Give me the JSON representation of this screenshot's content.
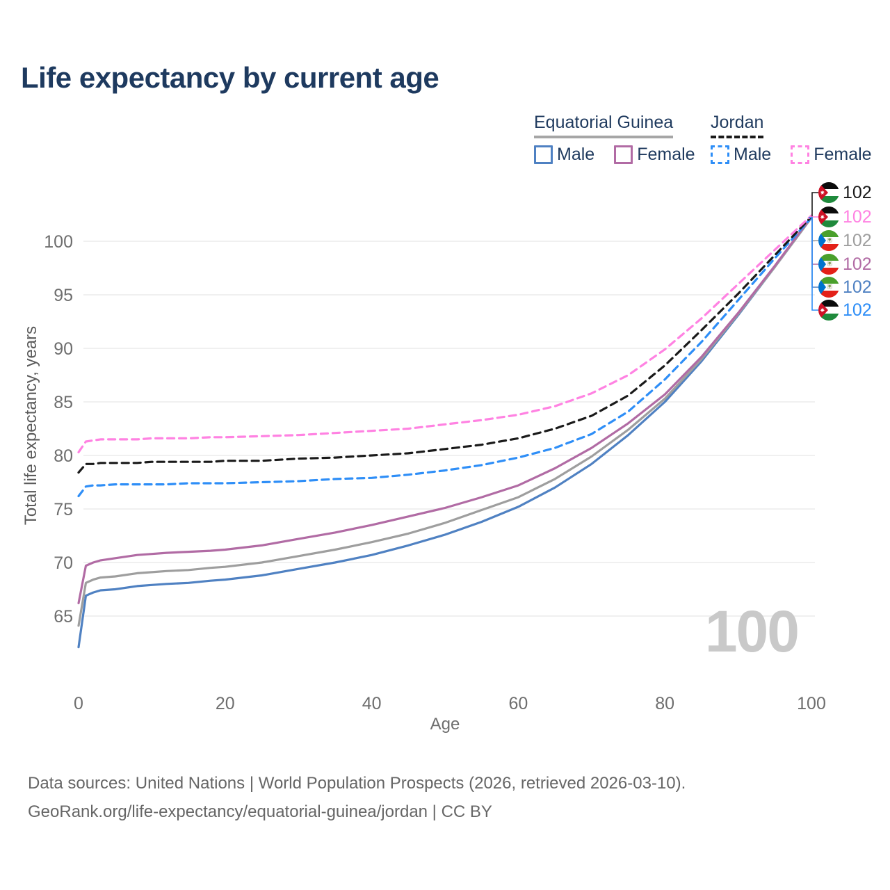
{
  "title": "Life expectancy by current age",
  "legend": {
    "groups": [
      {
        "label": "Equatorial Guinea",
        "line_style": "solid",
        "underline_color": "#a6a6a6",
        "items": [
          {
            "label": "Male",
            "color": "#4f81c2"
          },
          {
            "label": "Female",
            "color": "#b16ba4"
          }
        ]
      },
      {
        "label": "Jordan",
        "line_style": "dashed",
        "underline_color": "#1a1a1a",
        "items": [
          {
            "label": "Male",
            "color": "#2e8ef7"
          },
          {
            "label": "Female",
            "color": "#ff82e2"
          }
        ]
      }
    ]
  },
  "watermark": "100",
  "footer": {
    "line1": "Data sources: United Nations | World Population Prospects (2026, retrieved 2026-03-10).",
    "line2": "GeoRank.org/life-expectancy/equatorial-guinea/jordan | CC BY"
  },
  "chart_data": {
    "type": "line",
    "title": "Life expectancy by current age",
    "xlabel": "Age",
    "ylabel": "Total life expectancy, years",
    "xlim": [
      0,
      100
    ],
    "ylim": [
      62,
      103
    ],
    "x_ticks": [
      0,
      20,
      40,
      60,
      80,
      100
    ],
    "y_ticks": [
      65,
      70,
      75,
      80,
      85,
      90,
      95,
      100
    ],
    "grid": "horizontal",
    "legend_position": "top-right",
    "x": [
      0,
      1,
      2,
      3,
      5,
      8,
      10,
      12,
      15,
      18,
      20,
      25,
      30,
      35,
      40,
      45,
      50,
      55,
      60,
      65,
      70,
      75,
      80,
      85,
      90,
      95,
      100
    ],
    "series": [
      {
        "name": "Equatorial Guinea — Male",
        "country": "Equatorial Guinea",
        "sex": "Male",
        "color": "#4f81c2",
        "dash": false,
        "values": [
          62.1,
          66.9,
          67.2,
          67.4,
          67.5,
          67.8,
          67.9,
          68.0,
          68.1,
          68.3,
          68.4,
          68.8,
          69.4,
          70.0,
          70.7,
          71.6,
          72.6,
          73.8,
          75.2,
          77.0,
          79.2,
          81.9,
          85.0,
          88.8,
          93.1,
          97.6,
          102.2
        ]
      },
      {
        "name": "Equatorial Guinea — Both sexes",
        "country": "Equatorial Guinea",
        "sex": "Both",
        "color": "#9e9e9e",
        "dash": false,
        "values": [
          64.1,
          68.1,
          68.4,
          68.6,
          68.7,
          69.0,
          69.1,
          69.2,
          69.3,
          69.5,
          69.6,
          70.0,
          70.6,
          71.2,
          71.9,
          72.7,
          73.7,
          74.9,
          76.1,
          77.8,
          79.9,
          82.4,
          85.3,
          89.0,
          93.2,
          97.6,
          102.2
        ]
      },
      {
        "name": "Equatorial Guinea — Female",
        "country": "Equatorial Guinea",
        "sex": "Female",
        "color": "#b16ba4",
        "dash": false,
        "values": [
          66.2,
          69.7,
          70.0,
          70.2,
          70.4,
          70.7,
          70.8,
          70.9,
          71.0,
          71.1,
          71.2,
          71.6,
          72.2,
          72.8,
          73.5,
          74.3,
          75.1,
          76.1,
          77.2,
          78.8,
          80.7,
          83.0,
          85.7,
          89.2,
          93.3,
          97.7,
          102.3
        ]
      },
      {
        "name": "Jordan — Male",
        "country": "Jordan",
        "sex": "Male",
        "color": "#2e8ef7",
        "dash": true,
        "values": [
          76.2,
          77.1,
          77.2,
          77.2,
          77.3,
          77.3,
          77.3,
          77.3,
          77.4,
          77.4,
          77.4,
          77.5,
          77.6,
          77.8,
          77.9,
          78.2,
          78.6,
          79.1,
          79.8,
          80.7,
          82.0,
          84.1,
          87.1,
          90.6,
          94.5,
          98.4,
          102.2
        ]
      },
      {
        "name": "Jordan — Both sexes",
        "country": "Jordan",
        "sex": "Both",
        "color": "#1a1a1a",
        "dash": true,
        "values": [
          78.4,
          79.2,
          79.2,
          79.3,
          79.3,
          79.3,
          79.4,
          79.4,
          79.4,
          79.4,
          79.5,
          79.5,
          79.7,
          79.8,
          80.0,
          80.2,
          80.6,
          81.0,
          81.6,
          82.5,
          83.7,
          85.6,
          88.4,
          91.7,
          95.1,
          98.7,
          102.3
        ]
      },
      {
        "name": "Jordan — Female",
        "country": "Jordan",
        "sex": "Female",
        "color": "#ff82e2",
        "dash": true,
        "values": [
          80.3,
          81.3,
          81.4,
          81.5,
          81.5,
          81.5,
          81.6,
          81.6,
          81.6,
          81.7,
          81.7,
          81.8,
          81.9,
          82.1,
          82.3,
          82.5,
          82.9,
          83.3,
          83.8,
          84.6,
          85.8,
          87.5,
          89.9,
          92.8,
          96.0,
          99.2,
          102.4
        ]
      }
    ],
    "end_labels": [
      {
        "series": "Jordan — Both sexes",
        "flag": "jordan",
        "value": "102",
        "color": "#1a1a1a"
      },
      {
        "series": "Jordan — Female",
        "flag": "jordan",
        "value": "102",
        "color": "#ff82e2"
      },
      {
        "series": "Equatorial Guinea — Both sexes",
        "flag": "eqg",
        "value": "102",
        "color": "#9e9e9e"
      },
      {
        "series": "Equatorial Guinea — Female",
        "flag": "eqg",
        "value": "102",
        "color": "#b16ba4"
      },
      {
        "series": "Equatorial Guinea — Male",
        "flag": "eqg",
        "value": "102",
        "color": "#4f81c2"
      },
      {
        "series": "Jordan — Male",
        "flag": "jordan",
        "value": "102",
        "color": "#2e8ef7"
      }
    ]
  }
}
